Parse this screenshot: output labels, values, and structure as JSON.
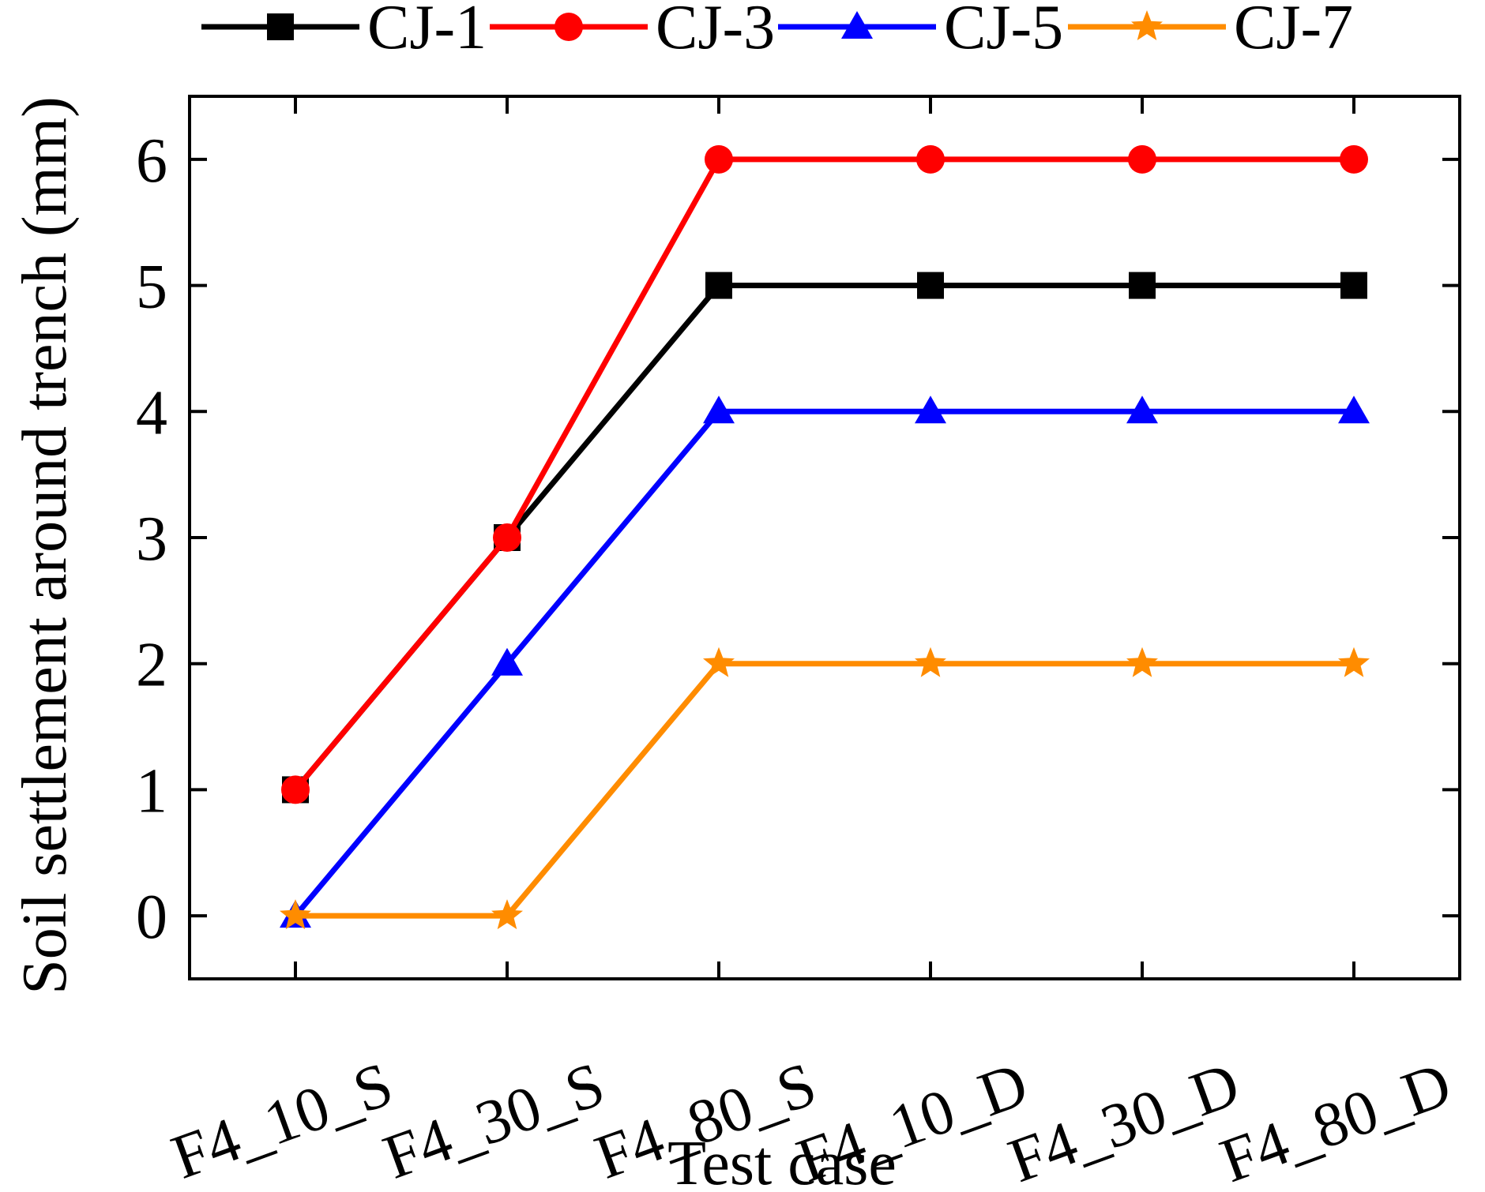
{
  "chart_data": {
    "type": "line",
    "title": "",
    "xlabel": "Test case",
    "ylabel": "Soil settlement around trench (mm)",
    "categories": [
      "F4_10_S",
      "F4_30_S",
      "F4_80_S",
      "F4_10_D",
      "F4_30_D",
      "F4_80_D"
    ],
    "ylim": [
      -0.5,
      6.5
    ],
    "yticks": [
      0,
      1,
      2,
      3,
      4,
      5,
      6
    ],
    "grid": false,
    "legend_position": "top",
    "series": [
      {
        "name": "CJ-1",
        "color": "#000000",
        "marker": "square",
        "values": [
          1,
          3,
          5,
          5,
          5,
          5
        ]
      },
      {
        "name": "CJ-3",
        "color": "#ff0000",
        "marker": "circle",
        "values": [
          1,
          3,
          6,
          6,
          6,
          6
        ]
      },
      {
        "name": "CJ-5",
        "color": "#0000ff",
        "marker": "triangle",
        "values": [
          0,
          2,
          4,
          4,
          4,
          4
        ]
      },
      {
        "name": "CJ-7",
        "color": "#ff8c00",
        "marker": "star",
        "values": [
          0,
          0,
          2,
          2,
          2,
          2
        ]
      }
    ]
  }
}
